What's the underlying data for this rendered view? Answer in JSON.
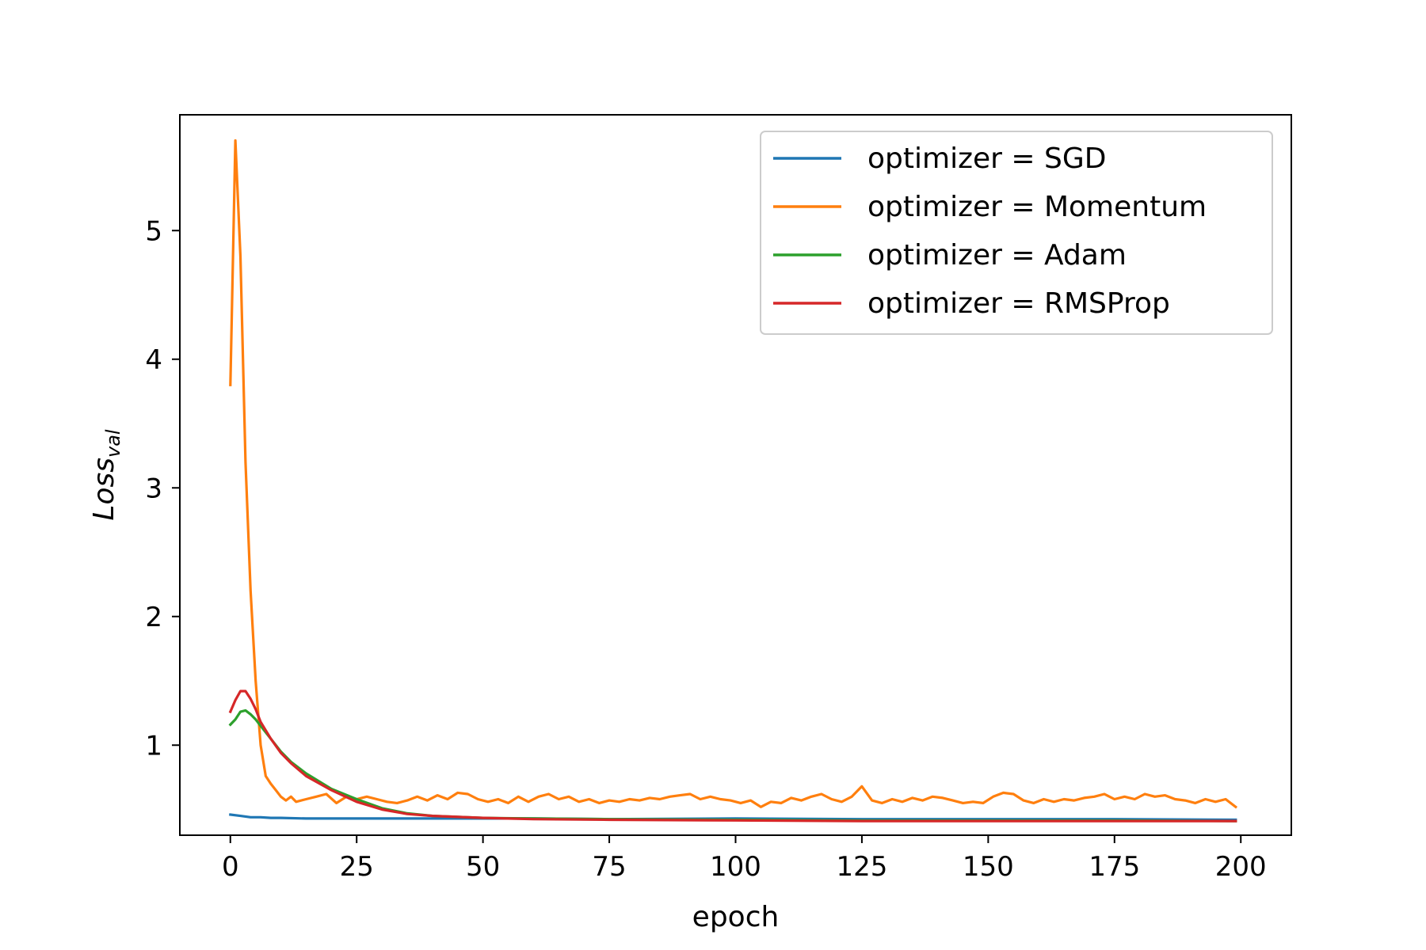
{
  "chart_data": {
    "type": "line",
    "title": "",
    "xlabel": "epoch",
    "ylabel_main": "Loss",
    "ylabel_sub": "val",
    "xlim": [
      -10,
      210
    ],
    "ylim": [
      0.3,
      5.9
    ],
    "xticks": [
      0,
      25,
      50,
      75,
      100,
      125,
      150,
      175,
      200
    ],
    "yticks": [
      1,
      2,
      3,
      4,
      5
    ],
    "xtick_labels": [
      "0",
      "25",
      "50",
      "75",
      "100",
      "125",
      "150",
      "175",
      "200"
    ],
    "ytick_labels": [
      "1",
      "2",
      "3",
      "4",
      "5"
    ],
    "grid": false,
    "legend_position": "upper-right",
    "series": [
      {
        "name": "optimizer = SGD",
        "color": "#1f77b4",
        "points": [
          [
            0,
            0.46
          ],
          [
            2,
            0.45
          ],
          [
            4,
            0.44
          ],
          [
            6,
            0.44
          ],
          [
            8,
            0.435
          ],
          [
            10,
            0.435
          ],
          [
            15,
            0.43
          ],
          [
            20,
            0.43
          ],
          [
            25,
            0.43
          ],
          [
            30,
            0.43
          ],
          [
            40,
            0.43
          ],
          [
            50,
            0.43
          ],
          [
            60,
            0.43
          ],
          [
            75,
            0.425
          ],
          [
            100,
            0.43
          ],
          [
            125,
            0.425
          ],
          [
            150,
            0.425
          ],
          [
            175,
            0.425
          ],
          [
            199,
            0.42
          ]
        ]
      },
      {
        "name": "optimizer = Momentum",
        "color": "#ff7f0e",
        "points": [
          [
            0,
            3.8
          ],
          [
            1,
            5.7
          ],
          [
            2,
            4.8
          ],
          [
            3,
            3.2
          ],
          [
            4,
            2.2
          ],
          [
            5,
            1.5
          ],
          [
            6,
            1.0
          ],
          [
            7,
            0.76
          ],
          [
            8,
            0.7
          ],
          [
            9,
            0.65
          ],
          [
            10,
            0.6
          ],
          [
            11,
            0.57
          ],
          [
            12,
            0.6
          ],
          [
            13,
            0.56
          ],
          [
            15,
            0.58
          ],
          [
            17,
            0.6
          ],
          [
            19,
            0.62
          ],
          [
            21,
            0.55
          ],
          [
            23,
            0.6
          ],
          [
            25,
            0.58
          ],
          [
            27,
            0.6
          ],
          [
            29,
            0.58
          ],
          [
            31,
            0.56
          ],
          [
            33,
            0.55
          ],
          [
            35,
            0.57
          ],
          [
            37,
            0.6
          ],
          [
            39,
            0.57
          ],
          [
            41,
            0.61
          ],
          [
            43,
            0.58
          ],
          [
            45,
            0.63
          ],
          [
            47,
            0.62
          ],
          [
            49,
            0.58
          ],
          [
            51,
            0.56
          ],
          [
            53,
            0.58
          ],
          [
            55,
            0.55
          ],
          [
            57,
            0.6
          ],
          [
            59,
            0.56
          ],
          [
            61,
            0.6
          ],
          [
            63,
            0.62
          ],
          [
            65,
            0.58
          ],
          [
            67,
            0.6
          ],
          [
            69,
            0.56
          ],
          [
            71,
            0.58
          ],
          [
            73,
            0.55
          ],
          [
            75,
            0.57
          ],
          [
            77,
            0.56
          ],
          [
            79,
            0.58
          ],
          [
            81,
            0.57
          ],
          [
            83,
            0.59
          ],
          [
            85,
            0.58
          ],
          [
            87,
            0.6
          ],
          [
            89,
            0.61
          ],
          [
            91,
            0.62
          ],
          [
            93,
            0.58
          ],
          [
            95,
            0.6
          ],
          [
            97,
            0.58
          ],
          [
            99,
            0.57
          ],
          [
            101,
            0.55
          ],
          [
            103,
            0.57
          ],
          [
            105,
            0.52
          ],
          [
            107,
            0.56
          ],
          [
            109,
            0.55
          ],
          [
            111,
            0.59
          ],
          [
            113,
            0.57
          ],
          [
            115,
            0.6
          ],
          [
            117,
            0.62
          ],
          [
            119,
            0.58
          ],
          [
            121,
            0.56
          ],
          [
            123,
            0.6
          ],
          [
            125,
            0.68
          ],
          [
            127,
            0.57
          ],
          [
            129,
            0.55
          ],
          [
            131,
            0.58
          ],
          [
            133,
            0.56
          ],
          [
            135,
            0.59
          ],
          [
            137,
            0.57
          ],
          [
            139,
            0.6
          ],
          [
            141,
            0.59
          ],
          [
            143,
            0.57
          ],
          [
            145,
            0.55
          ],
          [
            147,
            0.56
          ],
          [
            149,
            0.55
          ],
          [
            151,
            0.6
          ],
          [
            153,
            0.63
          ],
          [
            155,
            0.62
          ],
          [
            157,
            0.57
          ],
          [
            159,
            0.55
          ],
          [
            161,
            0.58
          ],
          [
            163,
            0.56
          ],
          [
            165,
            0.58
          ],
          [
            167,
            0.57
          ],
          [
            169,
            0.59
          ],
          [
            171,
            0.6
          ],
          [
            173,
            0.62
          ],
          [
            175,
            0.58
          ],
          [
            177,
            0.6
          ],
          [
            179,
            0.58
          ],
          [
            181,
            0.62
          ],
          [
            183,
            0.6
          ],
          [
            185,
            0.61
          ],
          [
            187,
            0.58
          ],
          [
            189,
            0.57
          ],
          [
            191,
            0.55
          ],
          [
            193,
            0.58
          ],
          [
            195,
            0.56
          ],
          [
            197,
            0.58
          ],
          [
            199,
            0.52
          ]
        ]
      },
      {
        "name": "optimizer = Adam",
        "color": "#2ca02c",
        "points": [
          [
            0,
            1.16
          ],
          [
            1,
            1.2
          ],
          [
            2,
            1.26
          ],
          [
            3,
            1.27
          ],
          [
            4,
            1.24
          ],
          [
            5,
            1.2
          ],
          [
            6,
            1.15
          ],
          [
            8,
            1.05
          ],
          [
            10,
            0.95
          ],
          [
            12,
            0.87
          ],
          [
            15,
            0.78
          ],
          [
            20,
            0.66
          ],
          [
            25,
            0.58
          ],
          [
            30,
            0.51
          ],
          [
            35,
            0.47
          ],
          [
            40,
            0.45
          ],
          [
            50,
            0.435
          ],
          [
            60,
            0.43
          ],
          [
            75,
            0.425
          ],
          [
            100,
            0.42
          ],
          [
            125,
            0.415
          ],
          [
            150,
            0.415
          ],
          [
            175,
            0.415
          ],
          [
            199,
            0.41
          ]
        ]
      },
      {
        "name": "optimizer = RMSProp",
        "color": "#d62728",
        "points": [
          [
            0,
            1.26
          ],
          [
            1,
            1.35
          ],
          [
            2,
            1.42
          ],
          [
            3,
            1.42
          ],
          [
            4,
            1.36
          ],
          [
            5,
            1.28
          ],
          [
            6,
            1.18
          ],
          [
            8,
            1.05
          ],
          [
            10,
            0.94
          ],
          [
            12,
            0.86
          ],
          [
            15,
            0.76
          ],
          [
            20,
            0.65
          ],
          [
            25,
            0.56
          ],
          [
            30,
            0.5
          ],
          [
            35,
            0.465
          ],
          [
            40,
            0.45
          ],
          [
            50,
            0.435
          ],
          [
            60,
            0.425
          ],
          [
            75,
            0.42
          ],
          [
            100,
            0.415
          ],
          [
            125,
            0.41
          ],
          [
            150,
            0.41
          ],
          [
            175,
            0.41
          ],
          [
            199,
            0.41
          ]
        ]
      }
    ]
  }
}
